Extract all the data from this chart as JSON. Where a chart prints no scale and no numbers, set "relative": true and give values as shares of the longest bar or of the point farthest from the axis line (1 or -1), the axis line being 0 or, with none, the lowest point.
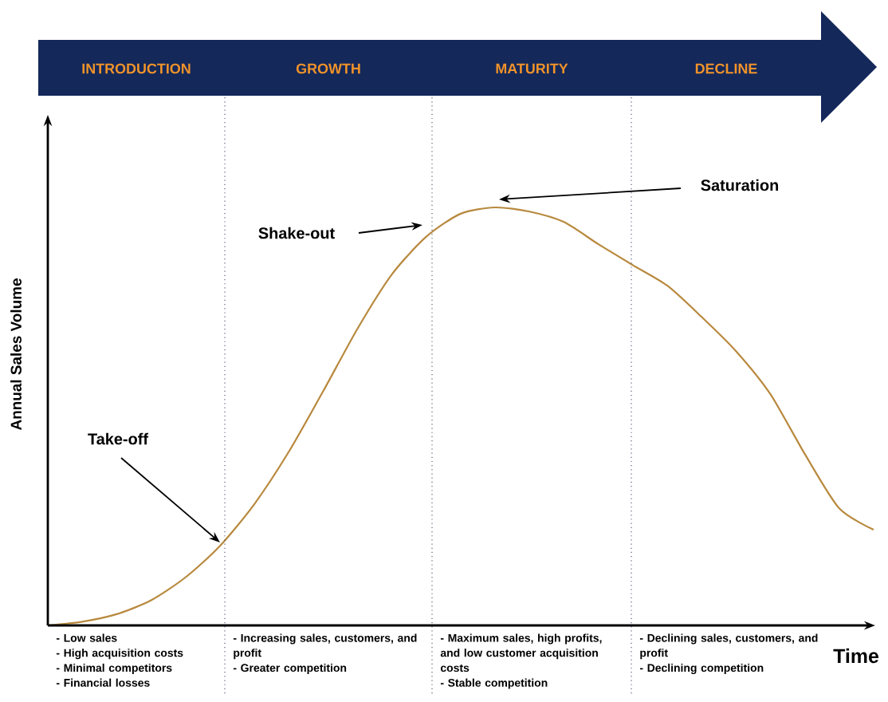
{
  "chart_data": {
    "type": "line",
    "relative": true,
    "xlabel": "Time",
    "ylabel": "Annual Sales Volume",
    "categories": [
      null,
      null,
      null,
      null,
      null,
      null,
      null,
      null,
      null,
      null,
      null,
      null,
      null,
      null,
      null,
      null,
      null,
      null,
      null,
      null,
      null,
      null,
      null,
      null,
      null
    ],
    "series": [
      {
        "color": "#b8893e",
        "values": [
          0,
          0.009,
          0.027,
          0.06,
          0.115,
          0.19,
          0.29,
          0.415,
          0.56,
          0.71,
          0.84,
          0.93,
          0.985,
          1,
          0.99,
          0.965,
          0.912,
          0.862,
          0.813,
          0.738,
          0.656,
          0.553,
          0.41,
          0.28,
          0.229
        ]
      }
    ],
    "annotations": [
      "INTRODUCTION",
      "GROWTH",
      "MATURITY",
      "DECLINE",
      "- Low sales",
      "- High acquisition costs",
      "- Minimal competitors",
      "- Financial losses",
      "- Increasing sales, customers, and profit",
      "- Greater competition",
      "- Maximum sales, high profits, and low customer acquisition costs",
      "- Stable competition",
      "- Declining sales, customers, and profit",
      "- Declining competition",
      "Take-off",
      "Shake-out",
      "Saturation"
    ],
    "marker": "none",
    "line_style": "solid"
  }
}
